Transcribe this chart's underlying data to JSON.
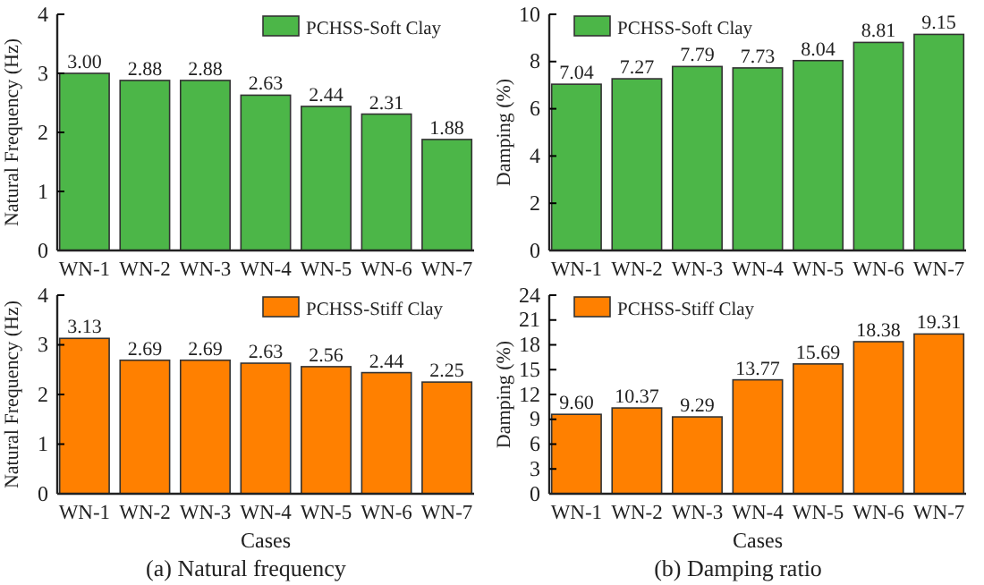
{
  "chart_data": [
    {
      "type": "bar",
      "ylabel": "Natural Frequency (Hz)",
      "categories": [
        "WN-1",
        "WN-2",
        "WN-3",
        "WN-4",
        "WN-5",
        "WN-6",
        "WN-7"
      ],
      "series": [
        {
          "name": "PCHSS-Soft Clay",
          "color": "#4cb648",
          "values": [
            3.0,
            2.88,
            2.88,
            2.63,
            2.44,
            2.31,
            1.88
          ],
          "value_labels": [
            "3.00",
            "2.88",
            "2.88",
            "2.63",
            "2.44",
            "2.31",
            "1.88"
          ]
        }
      ],
      "ylim": [
        0,
        4
      ],
      "yticks": [
        0,
        1,
        2,
        3,
        4
      ],
      "legend": "top right"
    },
    {
      "type": "bar",
      "ylabel": "Damping (%)",
      "categories": [
        "WN-1",
        "WN-2",
        "WN-3",
        "WN-4",
        "WN-5",
        "WN-6",
        "WN-7"
      ],
      "series": [
        {
          "name": "PCHSS-Soft Clay",
          "color": "#4cb648",
          "values": [
            7.04,
            7.27,
            7.79,
            7.73,
            8.04,
            8.81,
            9.15
          ],
          "value_labels": [
            "7.04",
            "7.27",
            "7.79",
            "7.73",
            "8.04",
            "8.81",
            "9.15"
          ]
        }
      ],
      "ylim": [
        0,
        10
      ],
      "yticks": [
        0,
        2,
        4,
        6,
        8,
        10
      ],
      "legend": "top left"
    },
    {
      "type": "bar",
      "ylabel": "Natural Frequency (Hz)",
      "xlabel": "Cases",
      "categories": [
        "WN-1",
        "WN-2",
        "WN-3",
        "WN-4",
        "WN-5",
        "WN-6",
        "WN-7"
      ],
      "series": [
        {
          "name": "PCHSS-Stiff Clay",
          "color": "#ff8000",
          "values": [
            3.13,
            2.69,
            2.69,
            2.63,
            2.56,
            2.44,
            2.25
          ],
          "value_labels": [
            "3.13",
            "2.69",
            "2.69",
            "2.63",
            "2.56",
            "2.44",
            "2.25"
          ]
        }
      ],
      "ylim": [
        0,
        4
      ],
      "yticks": [
        0,
        1,
        2,
        3,
        4
      ],
      "legend": "top right",
      "annotations": [
        "(a) Natural frequency"
      ]
    },
    {
      "type": "bar",
      "ylabel": "Damping (%)",
      "xlabel": "Cases",
      "categories": [
        "WN-1",
        "WN-2",
        "WN-3",
        "WN-4",
        "WN-5",
        "WN-6",
        "WN-7"
      ],
      "series": [
        {
          "name": "PCHSS-Stiff Clay",
          "color": "#ff8000",
          "values": [
            9.6,
            10.37,
            9.29,
            13.77,
            15.69,
            18.38,
            19.31
          ],
          "value_labels": [
            "9.60",
            "10.37",
            "9.29",
            "13.77",
            "15.69",
            "18.38",
            "19.31"
          ]
        }
      ],
      "ylim": [
        0,
        24
      ],
      "yticks": [
        0,
        3,
        6,
        9,
        12,
        15,
        18,
        21,
        24
      ],
      "legend": "top left",
      "annotations": [
        "(b) Damping ratio"
      ]
    }
  ]
}
